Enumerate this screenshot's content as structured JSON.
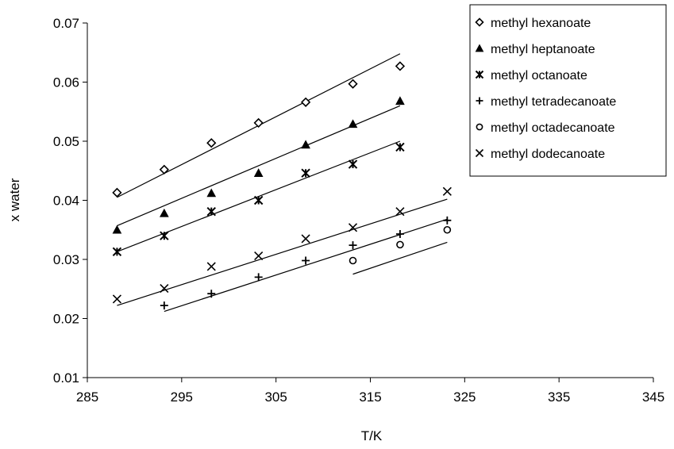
{
  "chart_data": {
    "type": "scatter",
    "title": "",
    "xlabel": "T/K",
    "ylabel": "x water",
    "xlim": [
      285,
      345
    ],
    "ylim": [
      0.01,
      0.07
    ],
    "x_ticks": [
      "285",
      "295",
      "305",
      "315",
      "325",
      "335",
      "345"
    ],
    "y_ticks": [
      "0.01",
      "0.02",
      "0.03",
      "0.04",
      "0.05",
      "0.06",
      "0.07"
    ],
    "grid": false,
    "legend_position": "top-right",
    "series": [
      {
        "name": "methyl hexanoate",
        "marker": "diamond-open",
        "points": [
          [
            288.15,
            0.0413
          ],
          [
            293.15,
            0.0452
          ],
          [
            298.15,
            0.0497
          ],
          [
            303.15,
            0.0531
          ],
          [
            308.15,
            0.0566
          ],
          [
            313.15,
            0.0597
          ],
          [
            318.15,
            0.0627
          ]
        ],
        "fit": [
          [
            288.15,
            0.0405
          ],
          [
            318.15,
            0.0648
          ]
        ]
      },
      {
        "name": "methyl heptanoate",
        "marker": "triangle-filled",
        "points": [
          [
            288.15,
            0.035
          ],
          [
            293.15,
            0.0378
          ],
          [
            298.15,
            0.0412
          ],
          [
            303.15,
            0.0446
          ],
          [
            308.15,
            0.0494
          ],
          [
            313.15,
            0.0529
          ],
          [
            318.15,
            0.0568
          ]
        ],
        "fit": [
          [
            288.15,
            0.0357
          ],
          [
            318.15,
            0.056
          ]
        ]
      },
      {
        "name": "methyl octanoate",
        "marker": "asterisk",
        "points": [
          [
            288.15,
            0.0313
          ],
          [
            293.15,
            0.034
          ],
          [
            298.15,
            0.0381
          ],
          [
            303.15,
            0.04
          ],
          [
            308.15,
            0.0446
          ],
          [
            313.15,
            0.0461
          ],
          [
            318.15,
            0.049
          ]
        ],
        "fit": [
          [
            288.15,
            0.0313
          ],
          [
            318.15,
            0.05
          ]
        ]
      },
      {
        "name": "methyl tetradecanoate",
        "marker": "plus",
        "points": [
          [
            293.15,
            0.0222
          ],
          [
            298.15,
            0.0242
          ],
          [
            303.15,
            0.027
          ],
          [
            308.15,
            0.0298
          ],
          [
            313.15,
            0.0324
          ],
          [
            318.15,
            0.0343
          ],
          [
            323.15,
            0.0366
          ]
        ],
        "fit": [
          [
            293.15,
            0.0212
          ],
          [
            323.15,
            0.0368
          ]
        ]
      },
      {
        "name": "methyl octadecanoate",
        "marker": "circle-open",
        "points": [
          [
            313.15,
            0.0298
          ],
          [
            318.15,
            0.0325
          ],
          [
            323.15,
            0.035
          ]
        ],
        "fit": [
          [
            313.15,
            0.0275
          ],
          [
            323.15,
            0.0329
          ]
        ]
      },
      {
        "name": "methyl dodecanoate",
        "marker": "x",
        "points": [
          [
            288.15,
            0.0233
          ],
          [
            293.15,
            0.0251
          ],
          [
            298.15,
            0.0288
          ],
          [
            303.15,
            0.0306
          ],
          [
            308.15,
            0.0335
          ],
          [
            313.15,
            0.0354
          ],
          [
            318.15,
            0.0381
          ],
          [
            323.15,
            0.0415
          ]
        ],
        "fit": [
          [
            288.15,
            0.0222
          ],
          [
            323.15,
            0.0402
          ]
        ]
      }
    ]
  }
}
